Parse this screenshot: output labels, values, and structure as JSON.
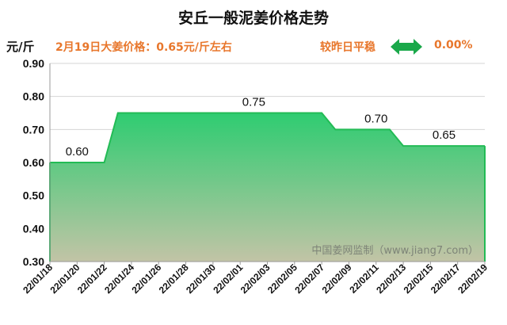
{
  "header": {
    "title": "安丘一般泥姜价格走势",
    "unit": "元/斤",
    "price_info": "2月19日大姜价格：0.65元/斤左右",
    "trend_label": "较昨日平稳",
    "change_pct": "0.00%",
    "trend_icon": "double-arrow-icon"
  },
  "watermark": "中国姜网监制（www.jiang7.com）",
  "colors": {
    "accent_orange": "#e8772c",
    "area_top": "#2ecc71",
    "area_bottom": "#c2c4a6",
    "line": "#22bb55",
    "arrow": "#1aa84a"
  },
  "chart_data": {
    "type": "area",
    "title": "安丘一般泥姜价格走势",
    "ylabel": "元/斤",
    "ylim": [
      0.3,
      0.9
    ],
    "yticks": [
      "0.30",
      "0.40",
      "0.50",
      "0.60",
      "0.70",
      "0.80",
      "0.90"
    ],
    "xticks": [
      "22/01/18",
      "22/01/20",
      "22/01/22",
      "22/01/24",
      "22/01/26",
      "22/01/28",
      "22/01/30",
      "22/02/01",
      "22/02/03",
      "22/02/05",
      "22/02/07",
      "22/02/09",
      "22/02/11",
      "22/02/13",
      "22/02/15",
      "22/02/17",
      "22/02/19"
    ],
    "x": [
      "22/01/18",
      "22/01/22",
      "22/01/23",
      "22/02/07",
      "22/02/08",
      "22/02/12",
      "22/02/13",
      "22/02/19"
    ],
    "y": [
      0.6,
      0.6,
      0.75,
      0.75,
      0.7,
      0.7,
      0.65,
      0.65
    ],
    "data_labels": [
      {
        "x": "22/01/20",
        "y": 0.6,
        "text": "0.60"
      },
      {
        "x": "22/02/02",
        "y": 0.75,
        "text": "0.75"
      },
      {
        "x": "22/02/11",
        "y": 0.7,
        "text": "0.70"
      },
      {
        "x": "22/02/16",
        "y": 0.65,
        "text": "0.65"
      }
    ],
    "grid": true
  }
}
